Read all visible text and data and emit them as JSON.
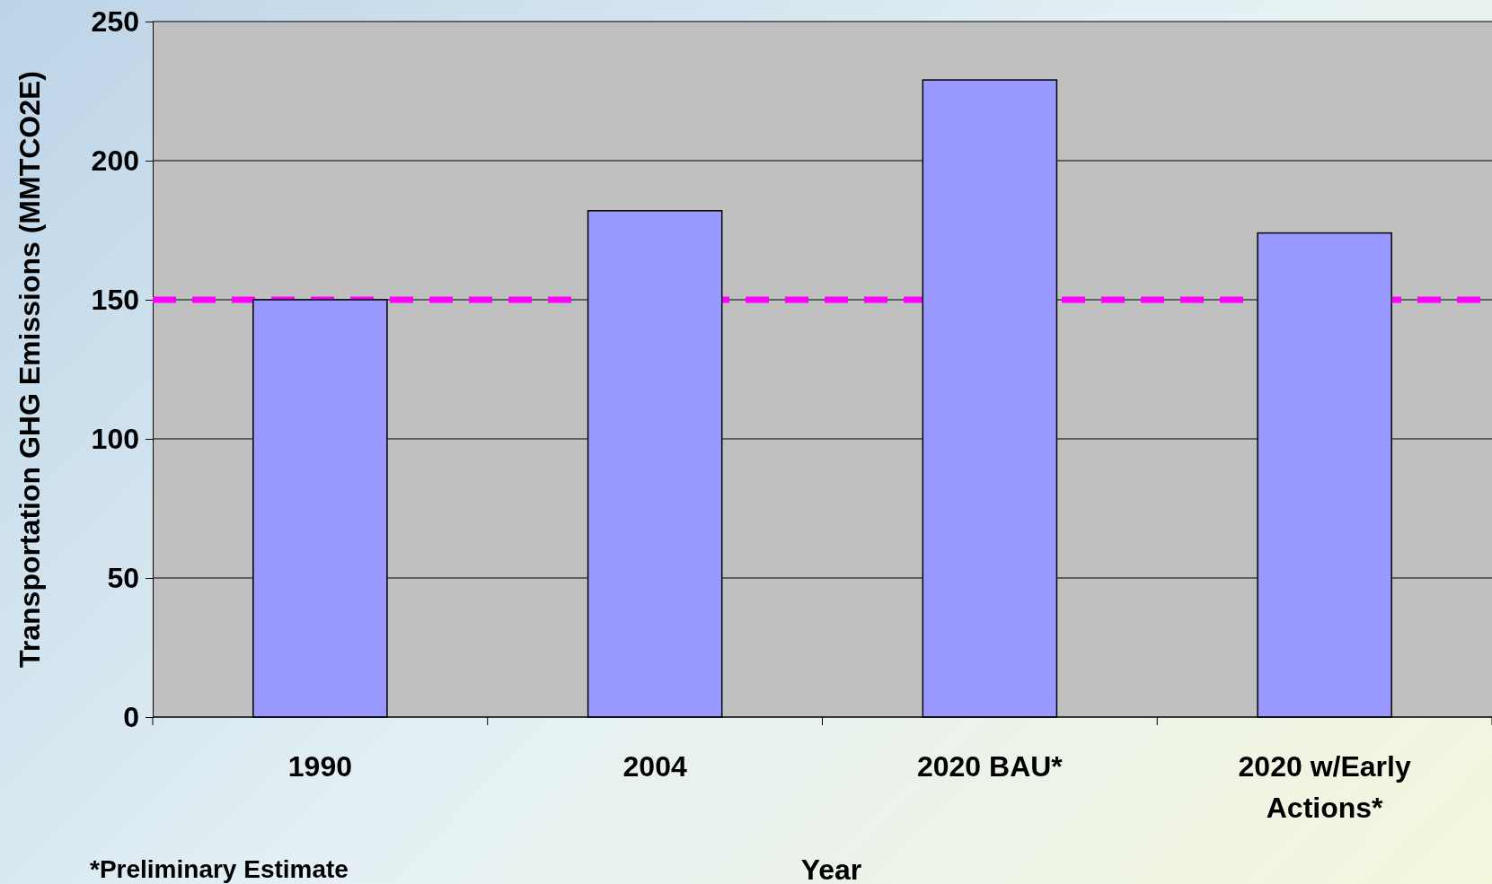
{
  "chart_data": {
    "type": "bar",
    "xlabel": "Year",
    "ylabel": "Transportation GHG Emissions (MMTCO2E)",
    "categories": [
      "1990",
      "2004",
      "2020 BAU*",
      "2020 w/Early Actions*"
    ],
    "values": [
      150,
      182,
      229,
      174
    ],
    "color": "#9999ff",
    "ylim": [
      0,
      250
    ],
    "yticks": [
      0,
      50,
      100,
      150,
      200,
      250
    ],
    "grid": "y",
    "ref_lines": [
      {
        "axis": "y",
        "value": 150,
        "color": "#ff00ff",
        "line_style": "dashed"
      }
    ],
    "annotations": [
      "*Preliminary Estimate"
    ]
  }
}
